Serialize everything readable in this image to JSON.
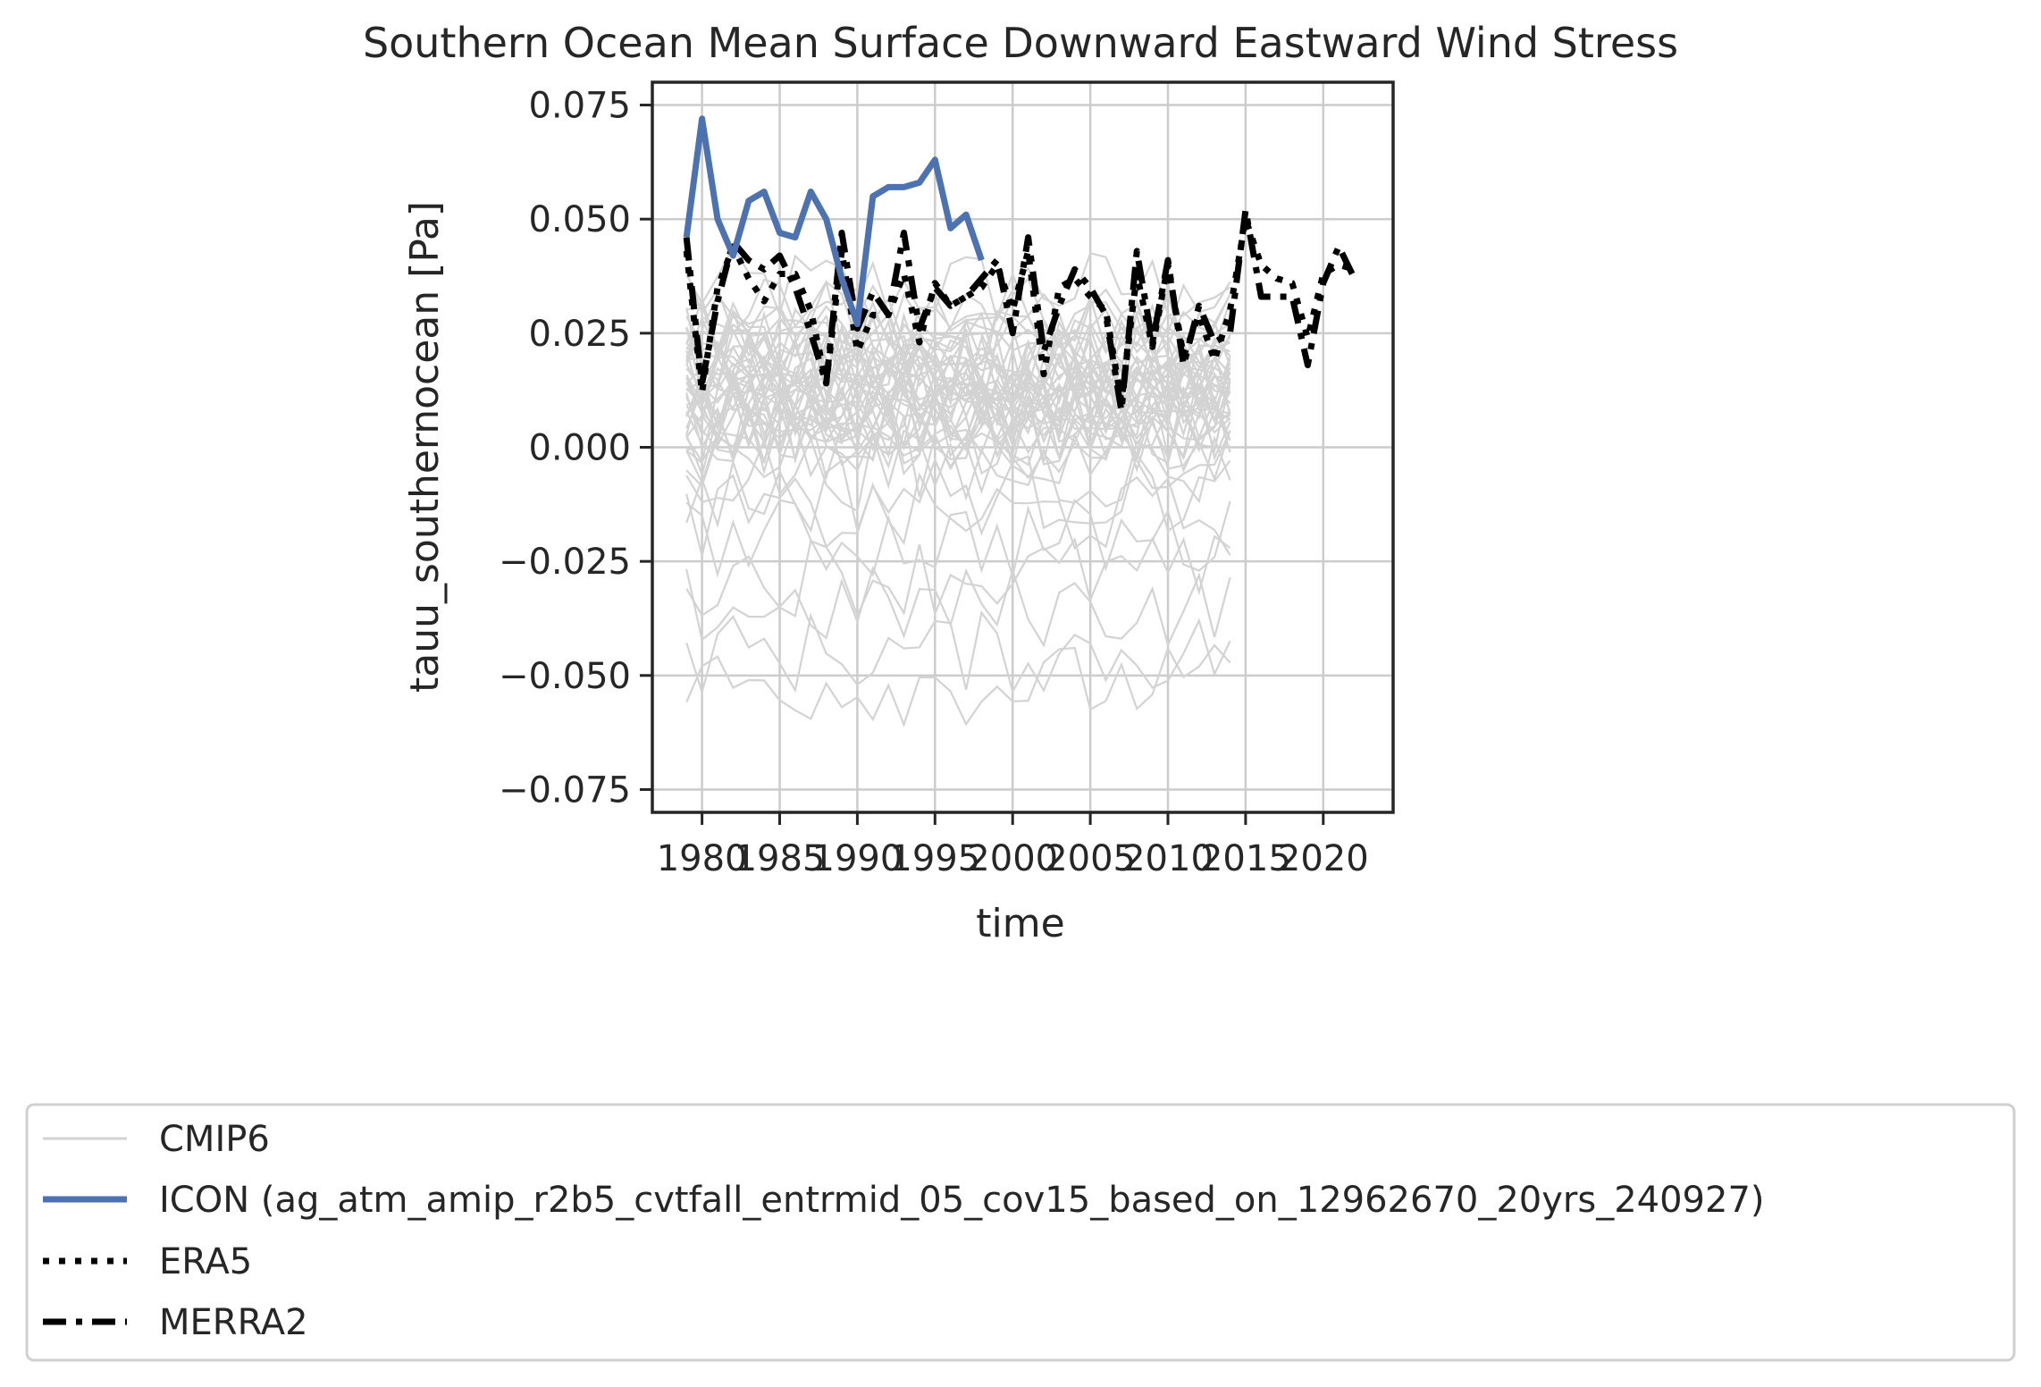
{
  "chart_data": {
    "type": "line",
    "title": "Southern Ocean Mean Surface Downward Eastward Wind Stress",
    "xlabel": "time",
    "ylabel": "tauu_southernocean [Pa]",
    "xlim": [
      1976.8,
      2024.5
    ],
    "ylim": [
      -0.08,
      0.08
    ],
    "xticks": [
      1980,
      1985,
      1990,
      1995,
      2000,
      2005,
      2010,
      2015,
      2020
    ],
    "xtick_labels": [
      "1980",
      "1985",
      "1990",
      "1995",
      "2000",
      "2005",
      "2010",
      "2015",
      "2020"
    ],
    "yticks": [
      0.075,
      0.05,
      0.025,
      0.0,
      -0.025,
      -0.05,
      -0.075
    ],
    "ytick_labels": [
      "0.075",
      "0.050",
      "0.025",
      "0.000",
      "−0.025",
      "−0.050",
      "−0.075"
    ],
    "grid": true,
    "legend_position": "bottom",
    "cmip6_years": [
      1979,
      1980,
      1981,
      1982,
      1983,
      1984,
      1985,
      1986,
      1987,
      1988,
      1989,
      1990,
      1991,
      1992,
      1993,
      1994,
      1995,
      1996,
      1997,
      1998,
      1999,
      2000,
      2001,
      2002,
      2003,
      2004,
      2005,
      2006,
      2007,
      2008,
      2009,
      2010,
      2011,
      2012,
      2013,
      2014
    ],
    "cmip6_centers": [
      0.035,
      0.03,
      0.028,
      0.026,
      0.025,
      0.024,
      0.022,
      0.022,
      0.021,
      0.02,
      0.02,
      0.019,
      0.018,
      0.018,
      0.017,
      0.016,
      0.016,
      0.015,
      0.015,
      0.014,
      0.014,
      0.013,
      0.012,
      0.012,
      0.011,
      0.011,
      0.01,
      0.01,
      0.009,
      0.009,
      0.008,
      0.008,
      0.007,
      0.006,
      0.006,
      0.005,
      0.005,
      0.004,
      0.003,
      0.002,
      0.0,
      -0.002,
      -0.005,
      -0.01,
      -0.015,
      -0.02,
      -0.028,
      -0.035,
      -0.045,
      -0.052
    ],
    "cmip6_amplitude": 0.009,
    "series": [
      {
        "name": "CMIP6",
        "color": "#d3d3d3",
        "style": "solid",
        "x": [],
        "y": []
      },
      {
        "name": "ICON (ag_atm_amip_r2b5_cvtfall_entrmid_05_cov15_based_on_12962670_20yrs_240927)",
        "color": "#4c72b0",
        "style": "solid",
        "x": [
          1979,
          1980,
          1981,
          1982,
          1983,
          1984,
          1985,
          1986,
          1987,
          1988,
          1989,
          1990,
          1991,
          1992,
          1993,
          1994,
          1995,
          1996,
          1997,
          1998
        ],
        "y": [
          0.046,
          0.072,
          0.05,
          0.042,
          0.054,
          0.056,
          0.047,
          0.046,
          0.056,
          0.05,
          0.037,
          0.027,
          0.055,
          0.057,
          0.057,
          0.058,
          0.063,
          0.048,
          0.051,
          0.041
        ]
      },
      {
        "name": "ERA5",
        "color": "#000000",
        "style": "dotted",
        "x": [
          1979,
          1980,
          1981,
          1982,
          1983,
          1984,
          1985,
          1986,
          1987,
          1988,
          1989,
          1990,
          1991,
          1992,
          1993,
          1994,
          1995,
          1996,
          1997,
          1998,
          1999,
          2000,
          2001,
          2002,
          2003,
          2004,
          2005,
          2006,
          2007,
          2008,
          2009,
          2010,
          2011,
          2012,
          2013,
          2014,
          2015,
          2016,
          2017,
          2018,
          2019,
          2020,
          2021,
          2022
        ],
        "y": [
          0.043,
          0.012,
          0.035,
          0.044,
          0.037,
          0.032,
          0.038,
          0.038,
          0.03,
          0.014,
          0.043,
          0.021,
          0.029,
          0.029,
          0.038,
          0.023,
          0.036,
          0.031,
          0.033,
          0.035,
          0.04,
          0.03,
          0.043,
          0.016,
          0.035,
          0.037,
          0.033,
          0.03,
          0.01,
          0.038,
          0.022,
          0.04,
          0.02,
          0.029,
          0.019,
          0.03,
          0.05,
          0.04,
          0.037,
          0.036,
          0.024,
          0.038,
          0.04,
          0.039
        ]
      },
      {
        "name": "MERRA2",
        "color": "#000000",
        "style": "dashdot",
        "x": [
          1979,
          1980,
          1981,
          1982,
          1983,
          1984,
          1985,
          1986,
          1987,
          1988,
          1989,
          1990,
          1991,
          1992,
          1993,
          1994,
          1995,
          1996,
          1997,
          1998,
          1999,
          2000,
          2001,
          2002,
          2003,
          2004,
          2005,
          2006,
          2007,
          2008,
          2009,
          2010,
          2011,
          2012,
          2013,
          2014,
          2015,
          2016,
          2017,
          2018,
          2019,
          2020,
          2021,
          2022
        ],
        "y": [
          0.046,
          0.014,
          0.032,
          0.045,
          0.041,
          0.039,
          0.042,
          0.035,
          0.025,
          0.014,
          0.047,
          0.026,
          0.034,
          0.029,
          0.047,
          0.026,
          0.035,
          0.031,
          0.033,
          0.037,
          0.041,
          0.025,
          0.046,
          0.021,
          0.031,
          0.039,
          0.035,
          0.029,
          0.008,
          0.043,
          0.023,
          0.041,
          0.018,
          0.031,
          0.023,
          0.025,
          0.052,
          0.033,
          0.033,
          0.033,
          0.018,
          0.036,
          0.044,
          0.037
        ]
      }
    ]
  }
}
